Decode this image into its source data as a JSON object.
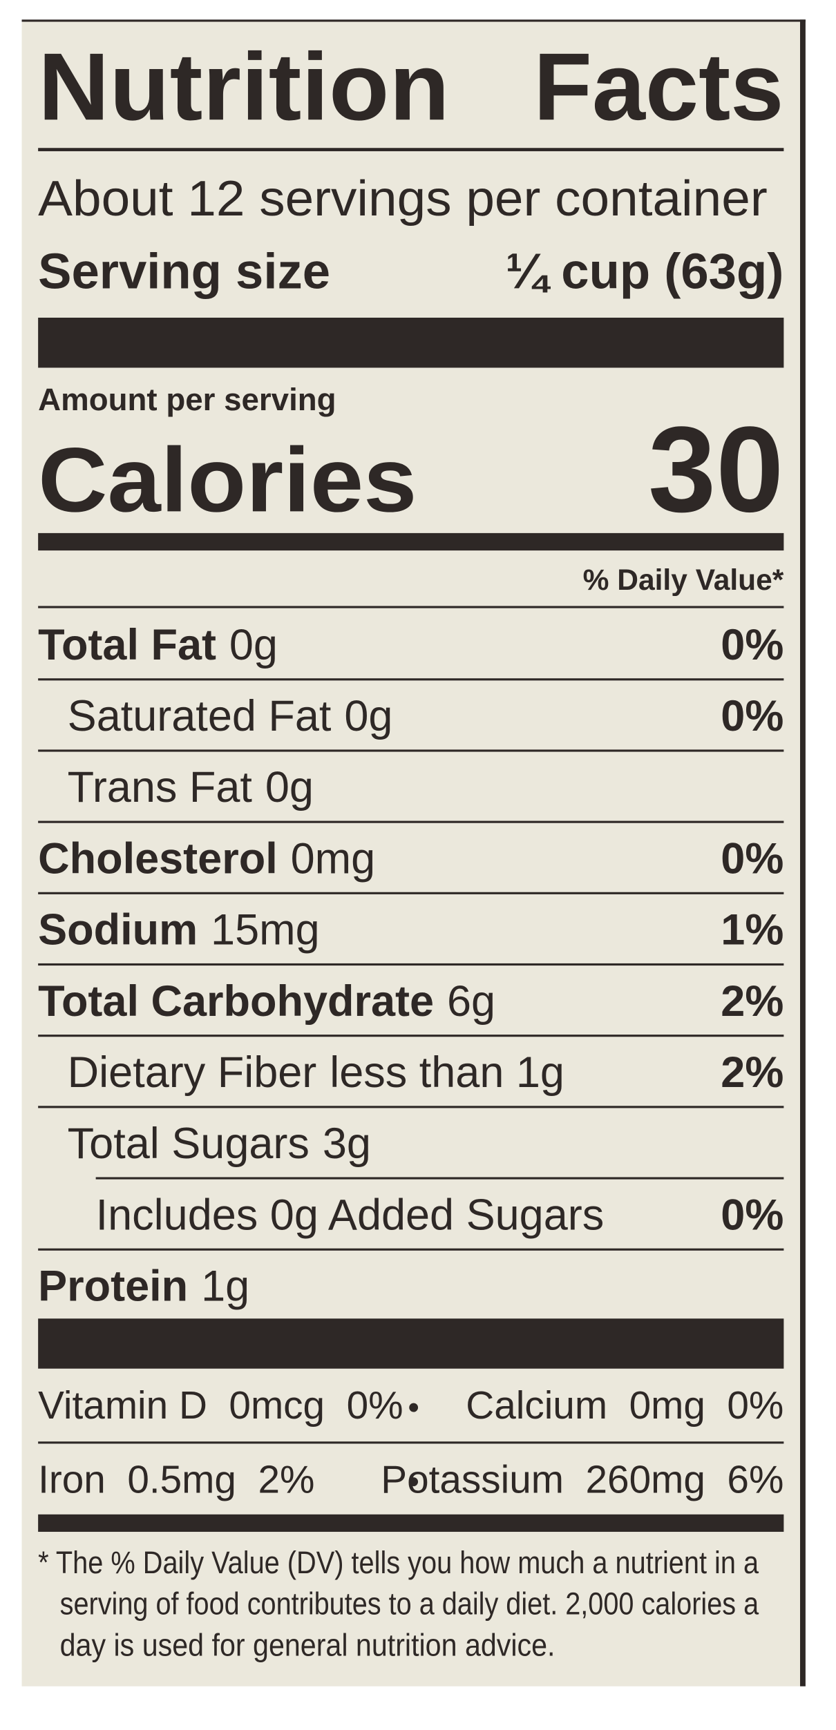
{
  "header": {
    "title_left": "Nutrition",
    "title_right": "Facts",
    "servings": "About 12 servings per container",
    "serving_size_label": "Serving size",
    "serving_size_value": "¼ cup (63g)"
  },
  "calories": {
    "amount_label": "Amount per serving",
    "label": "Calories",
    "value": "30"
  },
  "dv_header": "% Daily Value*",
  "nutrients": [
    {
      "name": "Total Fat",
      "amount": "0g",
      "dv": "0%",
      "bold": true,
      "indent": 0
    },
    {
      "name": "Saturated Fat",
      "amount": "0g",
      "dv": "0%",
      "bold": false,
      "indent": 1
    },
    {
      "name": "Trans Fat",
      "amount": "0g",
      "bold": false,
      "indent": 1
    },
    {
      "name": "Cholesterol",
      "amount": "0mg",
      "dv": "0%",
      "bold": true,
      "indent": 0
    },
    {
      "name": "Sodium",
      "amount": "15mg",
      "dv": "1%",
      "bold": true,
      "indent": 0
    },
    {
      "name": "Total Carbohydrate",
      "amount": "6g",
      "dv": "2%",
      "bold": true,
      "indent": 0
    },
    {
      "name": "Dietary Fiber",
      "amount": "less than 1g",
      "dv": "2%",
      "bold": false,
      "indent": 1
    },
    {
      "name": "Total Sugars",
      "amount": "3g",
      "bold": false,
      "indent": 1
    },
    {
      "name": "Includes 0g Added Sugars",
      "dv": "0%",
      "bold": false,
      "indent": 2
    },
    {
      "name": "Protein",
      "amount": "1g",
      "bold": true,
      "indent": 0
    }
  ],
  "vitamins": {
    "separator": "•",
    "rows": [
      [
        "Vitamin D  0mcg  0%",
        "Calcium  0mg  0%"
      ],
      [
        "Iron  0.5mg  2%",
        "Potassium  260mg  6%"
      ]
    ]
  },
  "footnote": [
    "* The % Daily Value (DV) tells you how much a nutrient in a",
    "serving of food contributes to a daily diet. 2,000 calories a",
    "day is used for general nutrition advice."
  ]
}
